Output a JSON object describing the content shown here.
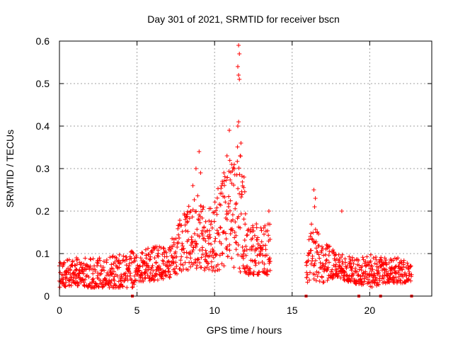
{
  "chart_data": {
    "type": "scatter",
    "title": "Day 301 of 2021, SRMTID for receiver bscn",
    "xlabel": "GPS time / hours",
    "ylabel": "SRMTID / TECUs",
    "xlim": [
      0,
      24
    ],
    "ylim": [
      0,
      0.6
    ],
    "x_ticks": [
      0,
      5,
      10,
      15,
      20
    ],
    "x_tick_labels": [
      "0",
      "5",
      "10",
      "15",
      "20"
    ],
    "y_ticks": [
      0,
      0.1,
      0.2,
      0.3,
      0.4,
      0.5,
      0.6
    ],
    "y_tick_labels": [
      "0",
      "0.1",
      "0.2",
      "0.3",
      "0.4",
      "0.5",
      "0.6"
    ],
    "grid": true,
    "marker": "+",
    "series_color": "#ff0000",
    "gap_markers_x": [
      4.7,
      15.9,
      19.3,
      20.7,
      22.7
    ],
    "envelope": {
      "description": "Approximate noise envelope (hour, low, high) and data-coverage segments",
      "segments": [
        [
          0,
          13.6
        ],
        [
          15.9,
          22.7
        ]
      ],
      "profile": [
        [
          0,
          0.02,
          0.08
        ],
        [
          1,
          0.025,
          0.09
        ],
        [
          2,
          0.02,
          0.09
        ],
        [
          3,
          0.02,
          0.09
        ],
        [
          4,
          0.02,
          0.1
        ],
        [
          4.7,
          0.02,
          0.11
        ],
        [
          5,
          0.035,
          0.1
        ],
        [
          6,
          0.035,
          0.12
        ],
        [
          7,
          0.04,
          0.12
        ],
        [
          7.5,
          0.05,
          0.16
        ],
        [
          8,
          0.06,
          0.2
        ],
        [
          8.5,
          0.06,
          0.22
        ],
        [
          9,
          0.06,
          0.24
        ],
        [
          9.5,
          0.06,
          0.2
        ],
        [
          10,
          0.05,
          0.22
        ],
        [
          10.5,
          0.07,
          0.3
        ],
        [
          11,
          0.07,
          0.34
        ],
        [
          11.5,
          0.06,
          0.38
        ],
        [
          12,
          0.05,
          0.25
        ],
        [
          12.5,
          0.05,
          0.18
        ],
        [
          13,
          0.05,
          0.16
        ],
        [
          13.6,
          0.05,
          0.19
        ],
        [
          15.9,
          0.03,
          0.1
        ],
        [
          16.3,
          0.04,
          0.18
        ],
        [
          17,
          0.03,
          0.14
        ],
        [
          17.5,
          0.04,
          0.12
        ],
        [
          18,
          0.04,
          0.1
        ],
        [
          19,
          0.03,
          0.09
        ],
        [
          20,
          0.02,
          0.1
        ],
        [
          21,
          0.03,
          0.09
        ],
        [
          22,
          0.03,
          0.09
        ],
        [
          22.7,
          0.03,
          0.08
        ]
      ],
      "spikes": [
        [
          11.55,
          0.59
        ],
        [
          11.6,
          0.57
        ],
        [
          11.5,
          0.54
        ],
        [
          11.55,
          0.52
        ],
        [
          11.6,
          0.51
        ],
        [
          11.55,
          0.41
        ],
        [
          11.5,
          0.4
        ],
        [
          10.95,
          0.39
        ],
        [
          11.7,
          0.36
        ],
        [
          11.65,
          0.33
        ],
        [
          10.8,
          0.33
        ],
        [
          11.1,
          0.31
        ],
        [
          9.0,
          0.34
        ],
        [
          8.8,
          0.3
        ],
        [
          10.6,
          0.29
        ],
        [
          9.1,
          0.29
        ],
        [
          11.9,
          0.28
        ],
        [
          10.5,
          0.27
        ],
        [
          8.6,
          0.26
        ],
        [
          16.4,
          0.25
        ],
        [
          16.5,
          0.23
        ],
        [
          18.2,
          0.2
        ],
        [
          13.5,
          0.2
        ],
        [
          16.45,
          0.21
        ]
      ]
    }
  }
}
